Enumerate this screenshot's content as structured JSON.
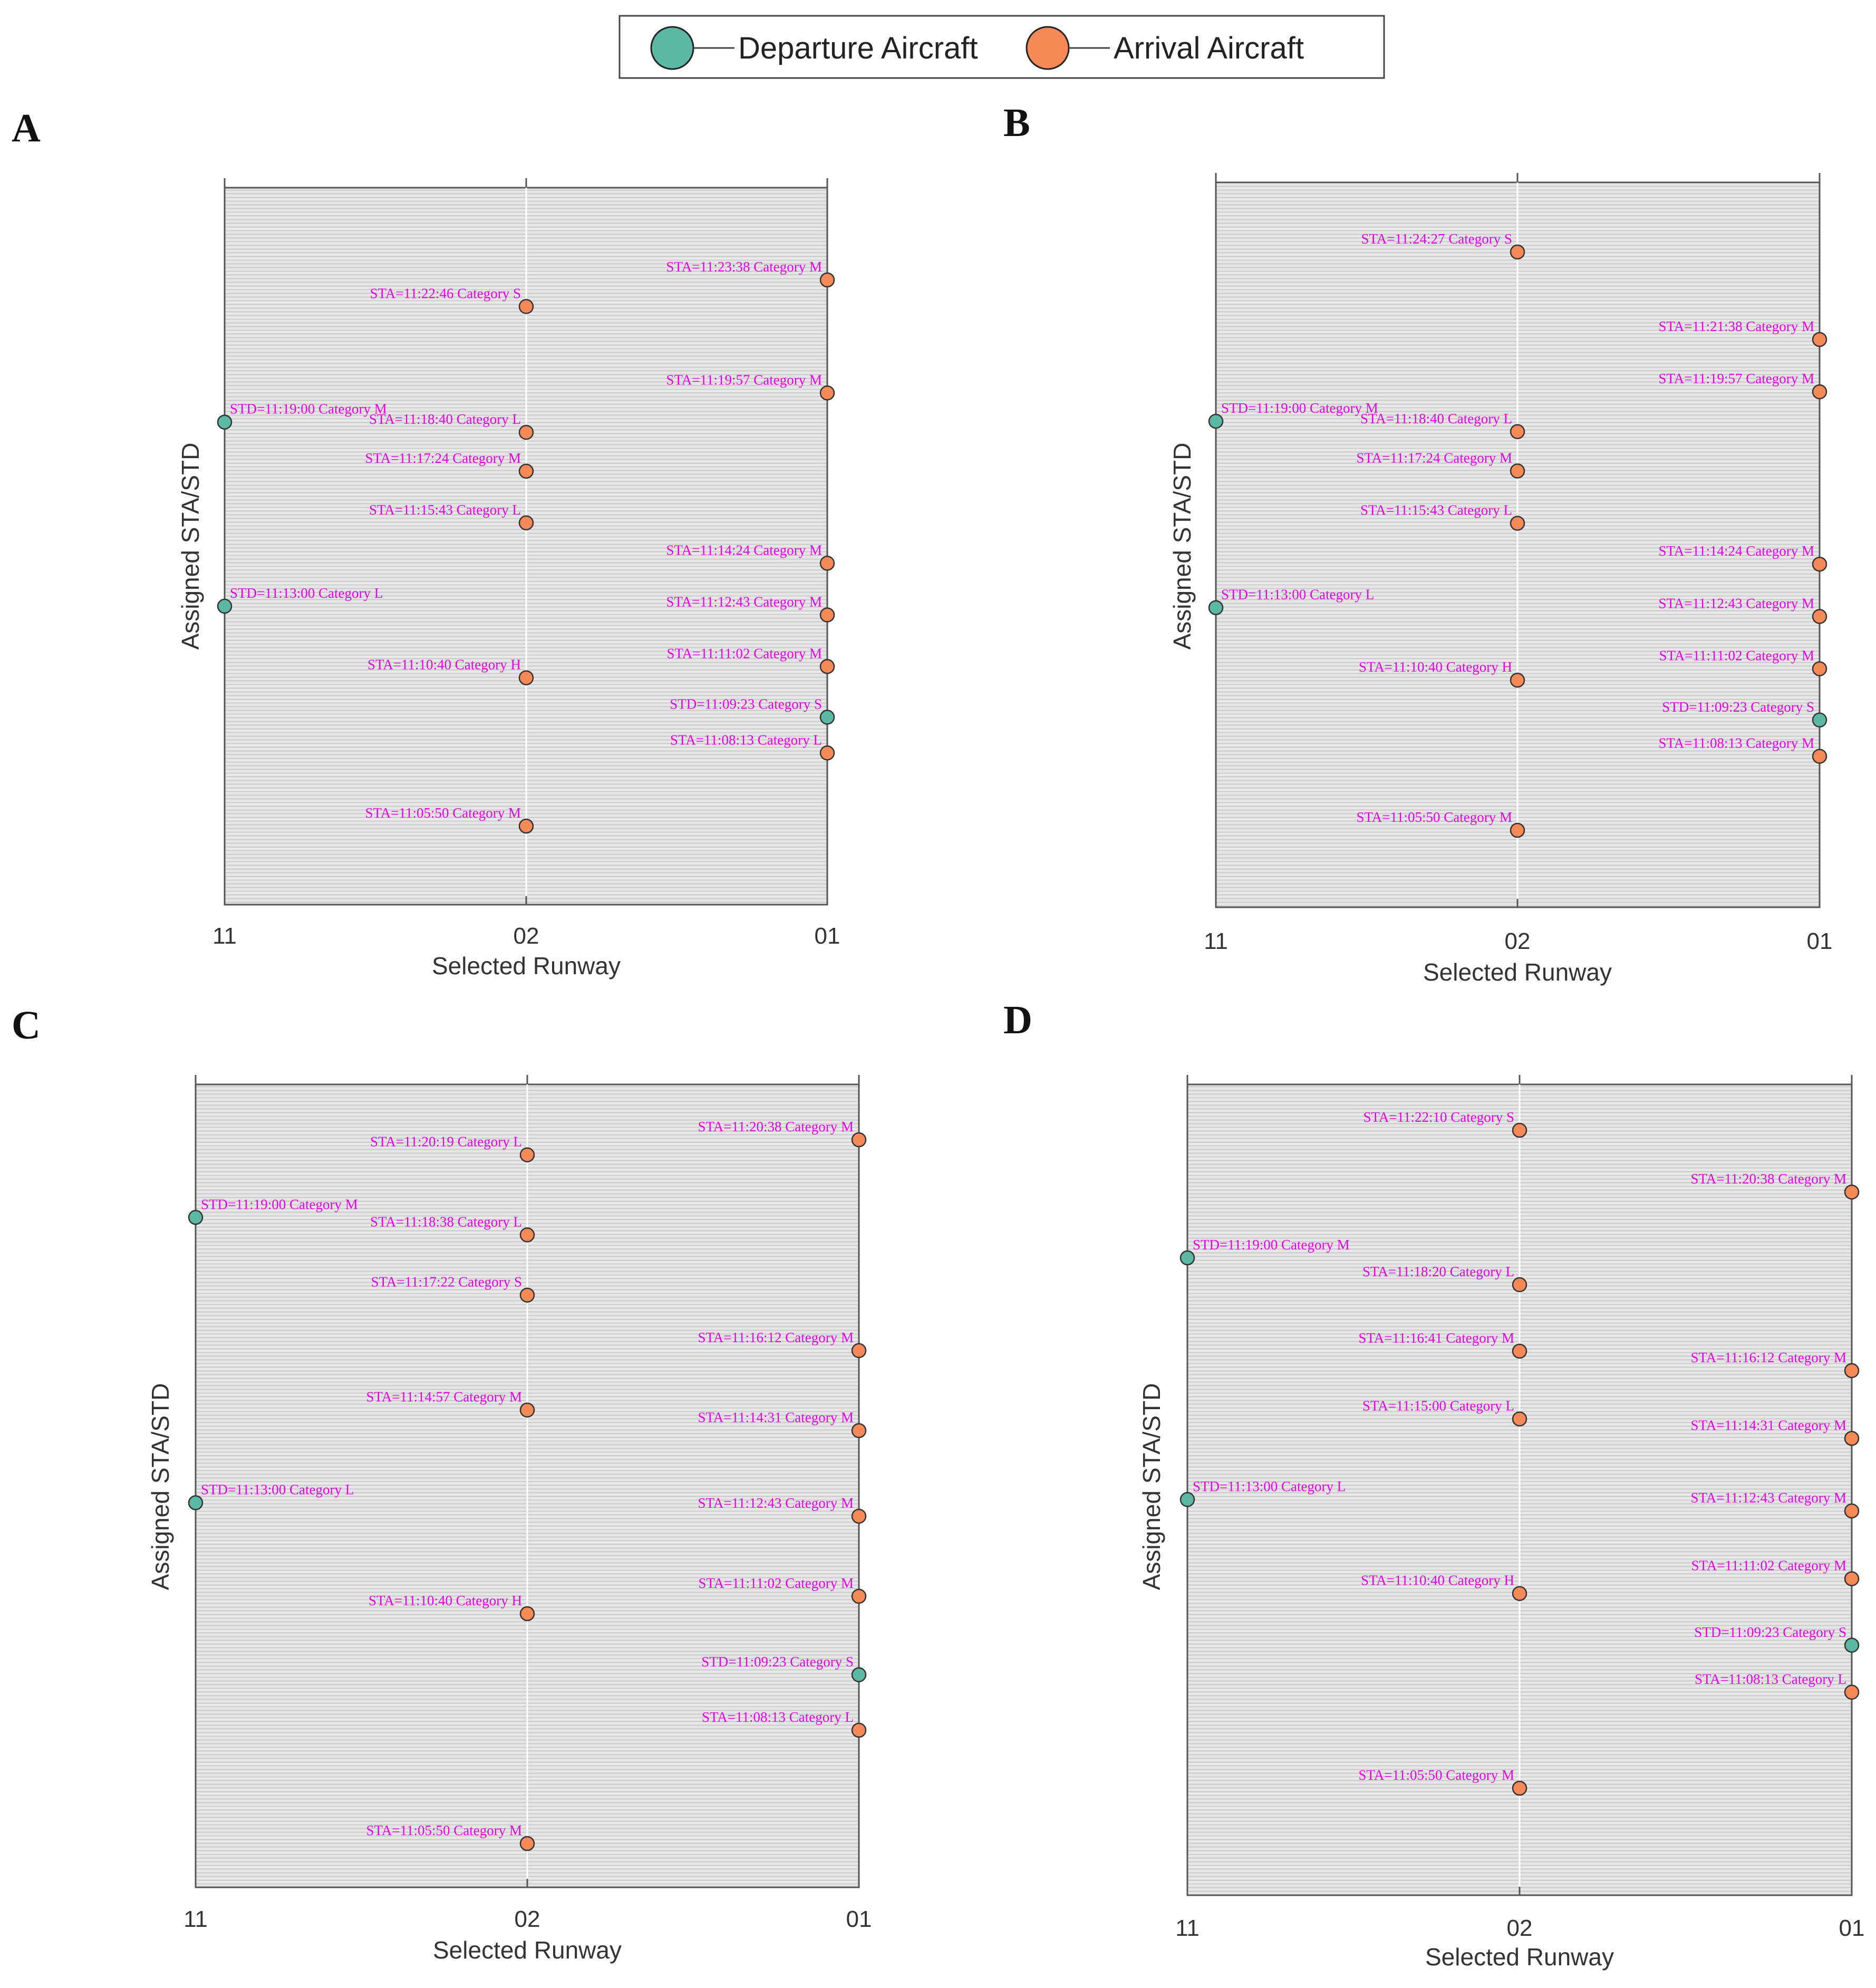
{
  "legend": {
    "departure": "Departure Aircraft",
    "arrival": "Arrival Aircraft"
  },
  "colors": {
    "departure": "#5ab8a5",
    "arrival": "#f58a58",
    "label": "#e400e4",
    "background": "#e6e6e6"
  },
  "chart_data": [
    {
      "type": "scatter",
      "panel": "A",
      "xlabel": "Selected Runway",
      "ylabel": "Assigned STA/STD",
      "x_categories": [
        "11",
        "02",
        "01"
      ],
      "points": [
        {
          "runway": "01",
          "kind": "arrival",
          "time": "11:23:38",
          "label": "STA=11:23:38 Category M"
        },
        {
          "runway": "02",
          "kind": "arrival",
          "time": "11:22:46",
          "label": "STA=11:22:46 Category S"
        },
        {
          "runway": "01",
          "kind": "arrival",
          "time": "11:19:57",
          "label": "STA=11:19:57 Category M"
        },
        {
          "runway": "11",
          "kind": "departure",
          "time": "11:19:00",
          "label": "STD=11:19:00 Category M"
        },
        {
          "runway": "02",
          "kind": "arrival",
          "time": "11:18:40",
          "label": "STA=11:18:40 Category L"
        },
        {
          "runway": "02",
          "kind": "arrival",
          "time": "11:17:24",
          "label": "STA=11:17:24 Category M"
        },
        {
          "runway": "02",
          "kind": "arrival",
          "time": "11:15:43",
          "label": "STA=11:15:43 Category L"
        },
        {
          "runway": "01",
          "kind": "arrival",
          "time": "11:14:24",
          "label": "STA=11:14:24 Category M"
        },
        {
          "runway": "11",
          "kind": "departure",
          "time": "11:13:00",
          "label": "STD=11:13:00 Category L"
        },
        {
          "runway": "01",
          "kind": "arrival",
          "time": "11:12:43",
          "label": "STA=11:12:43 Category M"
        },
        {
          "runway": "01",
          "kind": "arrival",
          "time": "11:11:02",
          "label": "STA=11:11:02 Category M"
        },
        {
          "runway": "02",
          "kind": "arrival",
          "time": "11:10:40",
          "label": "STA=11:10:40 Category H"
        },
        {
          "runway": "01",
          "kind": "departure",
          "time": "11:09:23",
          "label": "STD=11:09:23 Category S"
        },
        {
          "runway": "01",
          "kind": "arrival",
          "time": "11:08:13",
          "label": "STA=11:08:13 Category L"
        },
        {
          "runway": "02",
          "kind": "arrival",
          "time": "11:05:50",
          "label": "STA=11:05:50 Category M"
        }
      ]
    },
    {
      "type": "scatter",
      "panel": "B",
      "xlabel": "Selected Runway",
      "ylabel": "Assigned STA/STD",
      "x_categories": [
        "11",
        "02",
        "01"
      ],
      "points": [
        {
          "runway": "02",
          "kind": "arrival",
          "time": "11:24:27",
          "label": "STA=11:24:27 Category S"
        },
        {
          "runway": "01",
          "kind": "arrival",
          "time": "11:21:38",
          "label": "STA=11:21:38 Category M"
        },
        {
          "runway": "01",
          "kind": "arrival",
          "time": "11:19:57",
          "label": "STA=11:19:57 Category M"
        },
        {
          "runway": "11",
          "kind": "departure",
          "time": "11:19:00",
          "label": "STD=11:19:00 Category M"
        },
        {
          "runway": "02",
          "kind": "arrival",
          "time": "11:18:40",
          "label": "STA=11:18:40 Category L"
        },
        {
          "runway": "02",
          "kind": "arrival",
          "time": "11:17:24",
          "label": "STA=11:17:24 Category M"
        },
        {
          "runway": "02",
          "kind": "arrival",
          "time": "11:15:43",
          "label": "STA=11:15:43 Category L"
        },
        {
          "runway": "01",
          "kind": "arrival",
          "time": "11:14:24",
          "label": "STA=11:14:24 Category M"
        },
        {
          "runway": "11",
          "kind": "departure",
          "time": "11:13:00",
          "label": "STD=11:13:00 Category L"
        },
        {
          "runway": "01",
          "kind": "arrival",
          "time": "11:12:43",
          "label": "STA=11:12:43 Category M"
        },
        {
          "runway": "01",
          "kind": "arrival",
          "time": "11:11:02",
          "label": "STA=11:11:02 Category M"
        },
        {
          "runway": "02",
          "kind": "arrival",
          "time": "11:10:40",
          "label": "STA=11:10:40 Category H"
        },
        {
          "runway": "01",
          "kind": "departure",
          "time": "11:09:23",
          "label": "STD=11:09:23 Category S"
        },
        {
          "runway": "01",
          "kind": "arrival",
          "time": "11:08:13",
          "label": "STA=11:08:13 Category M"
        },
        {
          "runway": "02",
          "kind": "arrival",
          "time": "11:05:50",
          "label": "STA=11:05:50 Category M"
        }
      ]
    },
    {
      "type": "scatter",
      "panel": "C",
      "xlabel": "Selected Runway",
      "ylabel": "Assigned STA/STD",
      "x_categories": [
        "11",
        "02",
        "01"
      ],
      "points": [
        {
          "runway": "01",
          "kind": "arrival",
          "time": "11:20:38",
          "label": "STA=11:20:38 Category M"
        },
        {
          "runway": "02",
          "kind": "arrival",
          "time": "11:20:19",
          "label": "STA=11:20:19 Category L"
        },
        {
          "runway": "11",
          "kind": "departure",
          "time": "11:19:00",
          "label": "STD=11:19:00 Category M"
        },
        {
          "runway": "02",
          "kind": "arrival",
          "time": "11:18:38",
          "label": "STA=11:18:38 Category L"
        },
        {
          "runway": "02",
          "kind": "arrival",
          "time": "11:17:22",
          "label": "STA=11:17:22 Category S"
        },
        {
          "runway": "01",
          "kind": "arrival",
          "time": "11:16:12",
          "label": "STA=11:16:12 Category M"
        },
        {
          "runway": "02",
          "kind": "arrival",
          "time": "11:14:57",
          "label": "STA=11:14:57 Category M"
        },
        {
          "runway": "01",
          "kind": "arrival",
          "time": "11:14:31",
          "label": "STA=11:14:31 Category M"
        },
        {
          "runway": "11",
          "kind": "departure",
          "time": "11:13:00",
          "label": "STD=11:13:00 Category L"
        },
        {
          "runway": "01",
          "kind": "arrival",
          "time": "11:12:43",
          "label": "STA=11:12:43 Category M"
        },
        {
          "runway": "01",
          "kind": "arrival",
          "time": "11:11:02",
          "label": "STA=11:11:02 Category M"
        },
        {
          "runway": "02",
          "kind": "arrival",
          "time": "11:10:40",
          "label": "STA=11:10:40 Category H"
        },
        {
          "runway": "01",
          "kind": "departure",
          "time": "11:09:23",
          "label": "STD=11:09:23 Category S"
        },
        {
          "runway": "01",
          "kind": "arrival",
          "time": "11:08:13",
          "label": "STA=11:08:13 Category L"
        },
        {
          "runway": "02",
          "kind": "arrival",
          "time": "11:05:50",
          "label": "STA=11:05:50 Category M"
        }
      ]
    },
    {
      "type": "scatter",
      "panel": "D",
      "xlabel": "Selected Runway",
      "ylabel": "Assigned STA/STD",
      "x_categories": [
        "11",
        "02",
        "01"
      ],
      "points": [
        {
          "runway": "02",
          "kind": "arrival",
          "time": "11:22:10",
          "label": "STA=11:22:10 Category S"
        },
        {
          "runway": "01",
          "kind": "arrival",
          "time": "11:20:38",
          "label": "STA=11:20:38 Category M"
        },
        {
          "runway": "11",
          "kind": "departure",
          "time": "11:19:00",
          "label": "STD=11:19:00 Category M"
        },
        {
          "runway": "02",
          "kind": "arrival",
          "time": "11:18:20",
          "label": "STA=11:18:20 Category L"
        },
        {
          "runway": "02",
          "kind": "arrival",
          "time": "11:16:41",
          "label": "STA=11:16:41 Category M"
        },
        {
          "runway": "01",
          "kind": "arrival",
          "time": "11:16:12",
          "label": "STA=11:16:12 Category M"
        },
        {
          "runway": "02",
          "kind": "arrival",
          "time": "11:15:00",
          "label": "STA=11:15:00 Category L"
        },
        {
          "runway": "01",
          "kind": "arrival",
          "time": "11:14:31",
          "label": "STA=11:14:31 Category M"
        },
        {
          "runway": "11",
          "kind": "departure",
          "time": "11:13:00",
          "label": "STD=11:13:00 Category L"
        },
        {
          "runway": "01",
          "kind": "arrival",
          "time": "11:12:43",
          "label": "STA=11:12:43 Category M"
        },
        {
          "runway": "01",
          "kind": "arrival",
          "time": "11:11:02",
          "label": "STA=11:11:02 Category M"
        },
        {
          "runway": "02",
          "kind": "arrival",
          "time": "11:10:40",
          "label": "STA=11:10:40 Category H"
        },
        {
          "runway": "01",
          "kind": "departure",
          "time": "11:09:23",
          "label": "STD=11:09:23 Category S"
        },
        {
          "runway": "01",
          "kind": "arrival",
          "time": "11:08:13",
          "label": "STA=11:08:13 Category L"
        },
        {
          "runway": "02",
          "kind": "arrival",
          "time": "11:05:50",
          "label": "STA=11:05:50 Category M"
        }
      ]
    }
  ]
}
